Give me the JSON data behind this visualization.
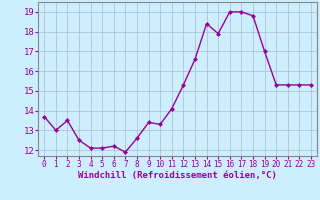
{
  "x": [
    0,
    1,
    2,
    3,
    4,
    5,
    6,
    7,
    8,
    9,
    10,
    11,
    12,
    13,
    14,
    15,
    16,
    17,
    18,
    19,
    20,
    21,
    22,
    23
  ],
  "y": [
    13.7,
    13.0,
    13.5,
    12.5,
    12.1,
    12.1,
    12.2,
    11.9,
    12.6,
    13.4,
    13.3,
    14.1,
    15.3,
    16.6,
    18.4,
    17.9,
    19.0,
    19.0,
    18.8,
    17.0,
    15.3,
    15.3,
    15.3,
    15.3
  ],
  "line_color": "#990099",
  "marker": "D",
  "marker_size": 2,
  "ylim_min": 11.7,
  "ylim_max": 19.5,
  "yticks": [
    12,
    13,
    14,
    15,
    16,
    17,
    18,
    19
  ],
  "xticks": [
    0,
    1,
    2,
    3,
    4,
    5,
    6,
    7,
    8,
    9,
    10,
    11,
    12,
    13,
    14,
    15,
    16,
    17,
    18,
    19,
    20,
    21,
    22,
    23
  ],
  "xlabel": "Windchill (Refroidissement éolien,°C)",
  "bg_color": "#cceeff",
  "grid_color": "#aabbcc",
  "tick_label_color": "#990099",
  "xlabel_color": "#990099",
  "xlabel_fontsize": 6.5,
  "xlabel_fontweight": "bold",
  "ytick_fontsize": 6.5,
  "xtick_fontsize": 5.5,
  "spine_color": "#888888",
  "linewidth": 1.0
}
